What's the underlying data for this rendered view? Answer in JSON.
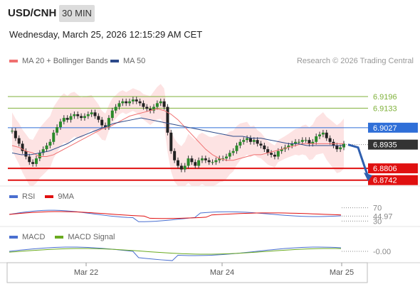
{
  "header": {
    "symbol": "USD/CNH",
    "timeframe": "30 MIN",
    "datetime": "Wednesday, March 25, 2026 12:15:29 AM CET"
  },
  "legend": {
    "ma20": {
      "label": "MA 20 + Bollinger Bands",
      "color": "#f07070"
    },
    "ma50": {
      "label": "MA 50",
      "color": "#2c4a8a"
    },
    "credit": "Research © 2026 Trading Central"
  },
  "chart_data": [
    {
      "type": "candlestick",
      "title": "USD/CNH",
      "price_range": [
        6.871,
        6.9335
      ],
      "x_ticks": [
        "Mar 22",
        "Mar 24",
        "Mar 25"
      ],
      "levels": [
        {
          "value": 6.9196,
          "label": "6.9196",
          "kind": "resistance",
          "color": "#7fb13a"
        },
        {
          "value": 6.9133,
          "label": "6.9133",
          "kind": "resistance",
          "color": "#7fb13a"
        },
        {
          "value": 6.9027,
          "label": "6.9027",
          "kind": "pivot",
          "color": "#2f6fd8"
        },
        {
          "value": 6.8935,
          "label": "6.8935",
          "kind": "last",
          "color": "#333333"
        },
        {
          "value": 6.8806,
          "label": "6.8806",
          "kind": "support",
          "color": "#e01010"
        },
        {
          "value": 6.8742,
          "label": "6.8742",
          "kind": "support",
          "color": "#e01010"
        }
      ],
      "close_series": [
        6.901,
        6.897,
        6.894,
        6.89,
        6.887,
        6.884,
        6.883,
        6.886,
        6.889,
        6.891,
        6.893,
        6.895,
        6.9,
        6.903,
        6.906,
        6.908,
        6.907,
        6.909,
        6.91,
        6.909,
        6.908,
        6.909,
        6.91,
        6.911,
        6.909,
        6.907,
        6.904,
        6.903,
        6.908,
        6.912,
        6.914,
        6.916,
        6.917,
        6.916,
        6.917,
        6.918,
        6.917,
        6.916,
        6.914,
        6.913,
        6.912,
        6.914,
        6.916,
        6.917,
        6.914,
        6.9,
        6.89,
        6.885,
        6.882,
        6.88,
        6.882,
        6.886,
        6.884,
        6.882,
        6.885,
        6.886,
        6.885,
        6.884,
        6.884,
        6.885,
        6.886,
        6.886,
        6.887,
        6.889,
        6.89,
        6.893,
        6.895,
        6.896,
        6.897,
        6.895,
        6.896,
        6.894,
        6.893,
        6.891,
        6.889,
        6.888,
        6.887,
        6.89,
        6.891,
        6.892,
        6.893,
        6.894,
        6.895,
        6.895,
        6.896,
        6.896,
        6.894,
        6.895,
        6.898,
        6.899,
        6.9,
        6.897,
        6.895,
        6.893,
        6.891,
        6.892,
        6.894
      ],
      "ma20": [
        6.893,
        6.892,
        6.89,
        6.889,
        6.887,
        6.887,
        6.888,
        6.89,
        6.892,
        6.894,
        6.896,
        6.898,
        6.9,
        6.902,
        6.903,
        6.905,
        6.907,
        6.909,
        6.91,
        6.911,
        6.912,
        6.913,
        6.912,
        6.91,
        6.907,
        6.903,
        6.899,
        6.895,
        6.891,
        6.888,
        6.886,
        6.885,
        6.885,
        6.886,
        6.887,
        6.888,
        6.888,
        6.889,
        6.89,
        6.891,
        6.892,
        6.893,
        6.894,
        6.894,
        6.894,
        6.894,
        6.894,
        6.894,
        6.894
      ],
      "ma50": [
        6.889,
        6.888,
        6.888,
        6.889,
        6.89,
        6.892,
        6.894,
        6.897,
        6.899,
        6.901,
        6.903,
        6.905,
        6.906,
        6.907,
        6.908,
        6.907,
        6.906,
        6.905,
        6.904,
        6.903,
        6.902,
        6.901,
        6.9,
        6.899,
        6.898,
        6.898,
        6.897,
        6.897,
        6.896,
        6.895,
        6.894,
        6.894,
        6.893,
        6.893,
        6.893,
        6.893,
        6.893
      ]
    },
    {
      "type": "line",
      "title": "RSI",
      "series": [
        {
          "name": "RSI",
          "color": "#4a6fd0"
        },
        {
          "name": "9MA",
          "color": "#e01010"
        }
      ],
      "levels": [
        {
          "value": 70,
          "label": "70"
        },
        {
          "value": 44.97,
          "label": "44.97"
        },
        {
          "value": 30,
          "label": "30"
        }
      ]
    },
    {
      "type": "line",
      "title": "MACD",
      "series": [
        {
          "name": "MACD",
          "color": "#4a6fd0"
        },
        {
          "name": "MACD Signal",
          "color": "#6aaa20"
        }
      ],
      "levels": [
        {
          "value": 0,
          "label": "-0.00"
        }
      ]
    }
  ],
  "rsi": {
    "label": "RSI",
    "ma_label": "9MA"
  },
  "macd": {
    "label": "MACD",
    "signal_label": "MACD Signal"
  }
}
